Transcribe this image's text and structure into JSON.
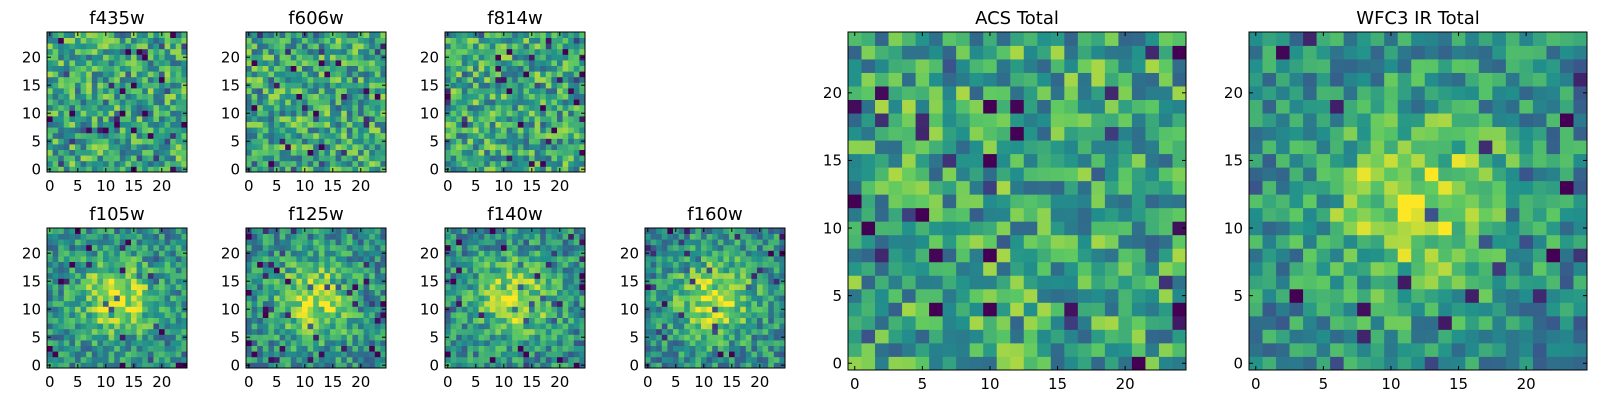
{
  "chart_data": [
    {
      "id": "f435w",
      "type": "heatmap",
      "title": "f435w",
      "grid_size": 25,
      "xticks": [
        0,
        5,
        10,
        15,
        20
      ],
      "yticks": [
        0,
        5,
        10,
        15,
        20
      ],
      "xlim": [
        0,
        24
      ],
      "ylim": [
        0,
        24
      ],
      "pattern": "noise",
      "seed": 11
    },
    {
      "id": "f606w",
      "type": "heatmap",
      "title": "f606w",
      "grid_size": 25,
      "xticks": [
        0,
        5,
        10,
        15,
        20
      ],
      "yticks": [
        0,
        5,
        10,
        15,
        20
      ],
      "xlim": [
        0,
        24
      ],
      "ylim": [
        0,
        24
      ],
      "pattern": "noise",
      "seed": 23
    },
    {
      "id": "f814w",
      "type": "heatmap",
      "title": "f814w",
      "grid_size": 25,
      "xticks": [
        0,
        5,
        10,
        15,
        20
      ],
      "yticks": [
        0,
        5,
        10,
        15,
        20
      ],
      "xlim": [
        0,
        24
      ],
      "ylim": [
        0,
        24
      ],
      "pattern": "noise",
      "seed": 37
    },
    {
      "id": "f105w",
      "type": "heatmap",
      "title": "f105w",
      "grid_size": 25,
      "xticks": [
        0,
        5,
        10,
        15,
        20
      ],
      "yticks": [
        0,
        5,
        10,
        15,
        20
      ],
      "xlim": [
        0,
        24
      ],
      "ylim": [
        0,
        24
      ],
      "pattern": "central_source",
      "seed": 41
    },
    {
      "id": "f125w",
      "type": "heatmap",
      "title": "f125w",
      "grid_size": 25,
      "xticks": [
        0,
        5,
        10,
        15,
        20
      ],
      "yticks": [
        0,
        5,
        10,
        15,
        20
      ],
      "xlim": [
        0,
        24
      ],
      "ylim": [
        0,
        24
      ],
      "pattern": "central_source",
      "seed": 53
    },
    {
      "id": "f140w",
      "type": "heatmap",
      "title": "f140w",
      "grid_size": 25,
      "xticks": [
        0,
        5,
        10,
        15,
        20
      ],
      "yticks": [
        0,
        5,
        10,
        15,
        20
      ],
      "xlim": [
        0,
        24
      ],
      "ylim": [
        0,
        24
      ],
      "pattern": "central_source",
      "seed": 67
    },
    {
      "id": "f160w",
      "type": "heatmap",
      "title": "f160w",
      "grid_size": 25,
      "xticks": [
        0,
        5,
        10,
        15,
        20
      ],
      "yticks": [
        0,
        5,
        10,
        15,
        20
      ],
      "xlim": [
        0,
        24
      ],
      "ylim": [
        0,
        24
      ],
      "pattern": "central_source",
      "seed": 79
    },
    {
      "id": "acs_total",
      "type": "heatmap",
      "title": "ACS Total",
      "grid_size": 25,
      "xticks": [
        0,
        5,
        10,
        15,
        20
      ],
      "yticks": [
        0,
        5,
        10,
        15,
        20
      ],
      "xlim": [
        0,
        24
      ],
      "ylim": [
        0,
        24
      ],
      "pattern": "noise",
      "seed": 89
    },
    {
      "id": "wfc3_ir_total",
      "type": "heatmap",
      "title": "WFC3 IR Total",
      "grid_size": 25,
      "xticks": [
        0,
        5,
        10,
        15,
        20
      ],
      "yticks": [
        0,
        5,
        10,
        15,
        20
      ],
      "xlim": [
        0,
        24
      ],
      "ylim": [
        0,
        24
      ],
      "pattern": "central_source",
      "seed": 97
    }
  ],
  "colormap": [
    "#440154",
    "#3b528b",
    "#21918c",
    "#5ec962",
    "#fde725"
  ]
}
